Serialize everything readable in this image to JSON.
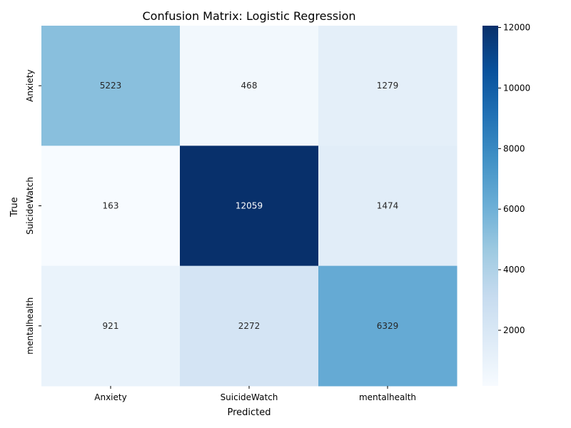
{
  "chart_data": {
    "type": "heatmap",
    "title": "Confusion Matrix: Logistic Regression",
    "xlabel": "Predicted",
    "ylabel": "True",
    "x_categories": [
      "Anxiety",
      "SuicideWatch",
      "mentalhealth"
    ],
    "y_categories": [
      "Anxiety",
      "SuicideWatch",
      "mentalhealth"
    ],
    "values": [
      [
        5223,
        468,
        1279
      ],
      [
        163,
        12059,
        1474
      ],
      [
        921,
        2272,
        6329
      ]
    ],
    "colorbar": {
      "colormap": "Blues",
      "range": [
        163,
        12059
      ],
      "ticks": [
        2000,
        4000,
        6000,
        8000,
        10000,
        12000
      ]
    }
  }
}
